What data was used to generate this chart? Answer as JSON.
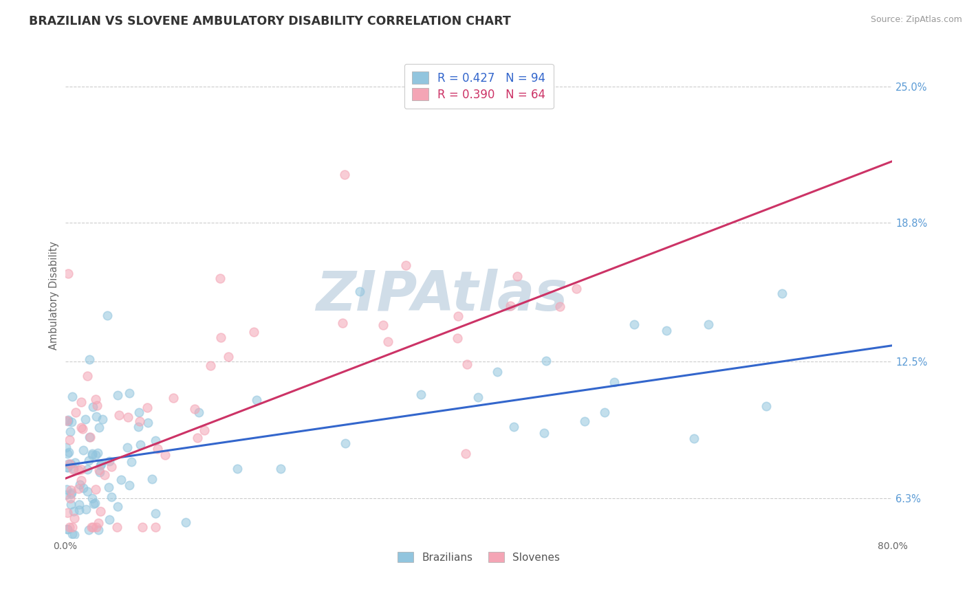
{
  "title": "BRAZILIAN VS SLOVENE AMBULATORY DISABILITY CORRELATION CHART",
  "source": "Source: ZipAtlas.com",
  "ylabel": "Ambulatory Disability",
  "xlim": [
    0.0,
    80.0
  ],
  "ylim": [
    4.5,
    26.5
  ],
  "xticks": [
    0.0,
    80.0
  ],
  "xtick_labels": [
    "0.0%",
    "80.0%"
  ],
  "yticks": [
    6.3,
    12.5,
    18.8,
    25.0
  ],
  "ytick_labels": [
    "6.3%",
    "12.5%",
    "18.8%",
    "25.0%"
  ],
  "ytick_color": "#5b9bd5",
  "grid_yticks": [
    6.3,
    12.5,
    18.8,
    25.0
  ],
  "legend_entries": [
    {
      "label": "R = 0.427   N = 94",
      "color": "#92c5de"
    },
    {
      "label": "R = 0.390   N = 64",
      "color": "#f4a5b5"
    }
  ],
  "legend_labels_bottom": [
    "Brazilians",
    "Slovenes"
  ],
  "brazilian_color": "#92c5de",
  "slovene_color": "#f4a5b5",
  "brazilian_line_color": "#3366cc",
  "slovene_line_color": "#cc3366",
  "grid_color": "#cccccc",
  "watermark": "ZIPAtlas",
  "watermark_color": "#d0dde8",
  "background_color": "#ffffff",
  "brazil_N": 94,
  "slovene_N": 64,
  "brazil_line_intercept": 7.8,
  "brazil_line_slope": 0.068,
  "slovene_line_intercept": 7.2,
  "slovene_line_slope": 0.18
}
